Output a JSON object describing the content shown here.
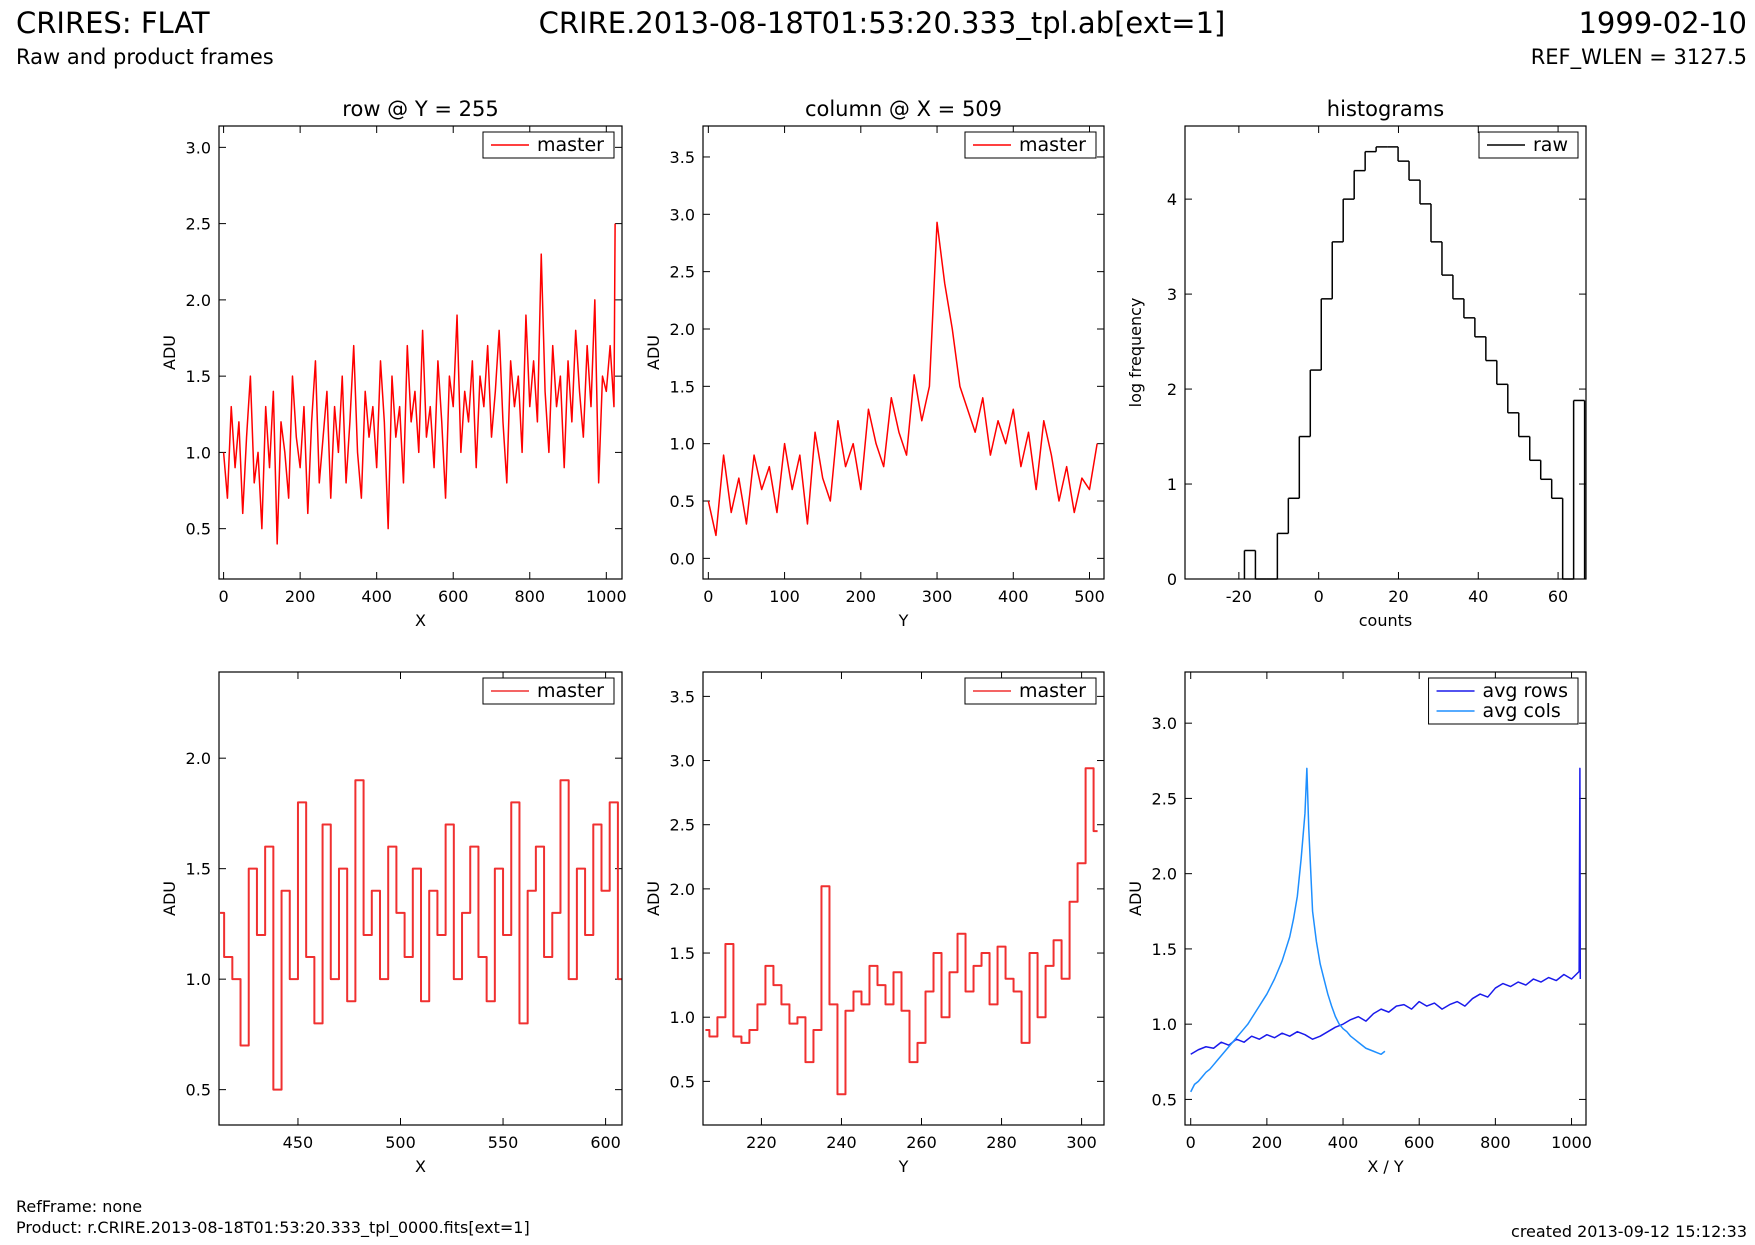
{
  "header": {
    "left_title": "CRIRES: FLAT",
    "left_subtitle": "Raw and product frames",
    "center_title": "CRIRE.2013-08-18T01:53:20.333_tpl.ab[ext=1]",
    "right_title": "1999-02-10",
    "right_subtitle": "REF_WLEN = 3127.5"
  },
  "footer": {
    "ref_frame": "RefFrame: none",
    "product": "Product: r.CRIRE.2013-08-18T01:53:20.333_tpl_0000.fits[ext=1]",
    "created": "created 2013-09-12 15:12:33"
  },
  "chart_data": [
    {
      "type": "line",
      "title": "row @ Y = 255",
      "x_label": "X",
      "y_label": "ADU",
      "legend": "upper right",
      "xlim": [
        -12,
        1041
      ],
      "xticks": [
        0,
        200,
        400,
        600,
        800,
        1000
      ],
      "ylim": [
        0.17,
        3.14
      ],
      "yticks": [
        0.5,
        {
          "value": 1,
          "label": "1.0"
        },
        1.5,
        {
          "value": 2,
          "label": "2.0"
        },
        2.5,
        {
          "value": 3,
          "label": "3.0"
        }
      ],
      "series": [
        {
          "name": "master",
          "color": "#ff0000",
          "x": [
            0,
            10,
            20,
            30,
            40,
            50,
            60,
            70,
            80,
            90,
            100,
            110,
            120,
            130,
            140,
            150,
            160,
            170,
            180,
            190,
            200,
            210,
            220,
            230,
            240,
            250,
            260,
            270,
            280,
            290,
            300,
            310,
            320,
            330,
            340,
            350,
            360,
            370,
            380,
            390,
            400,
            410,
            420,
            430,
            440,
            450,
            460,
            470,
            480,
            490,
            500,
            510,
            520,
            530,
            540,
            550,
            560,
            570,
            580,
            590,
            600,
            610,
            620,
            630,
            640,
            650,
            660,
            670,
            680,
            690,
            700,
            710,
            720,
            730,
            740,
            750,
            760,
            770,
            780,
            790,
            800,
            810,
            820,
            830,
            840,
            850,
            860,
            870,
            880,
            890,
            900,
            910,
            920,
            930,
            940,
            950,
            960,
            970,
            980,
            990,
            1000,
            1010,
            1020,
            1023
          ],
          "values": [
            1.0,
            0.7,
            1.3,
            0.9,
            1.2,
            0.6,
            1.1,
            1.5,
            0.8,
            1.0,
            0.5,
            1.3,
            0.9,
            1.4,
            0.4,
            1.2,
            1.0,
            0.7,
            1.5,
            1.1,
            0.9,
            1.3,
            0.6,
            1.2,
            1.6,
            0.8,
            1.1,
            1.4,
            0.7,
            1.3,
            1.0,
            1.5,
            0.8,
            1.2,
            1.7,
            1.0,
            0.7,
            1.4,
            1.1,
            1.3,
            0.9,
            1.6,
            1.2,
            0.5,
            1.5,
            1.1,
            1.3,
            0.8,
            1.7,
            1.2,
            1.4,
            1.0,
            1.8,
            1.1,
            1.3,
            0.9,
            1.6,
            1.2,
            0.7,
            1.5,
            1.3,
            1.9,
            1.0,
            1.4,
            1.2,
            1.6,
            0.9,
            1.5,
            1.3,
            1.7,
            1.1,
            1.4,
            1.8,
            1.2,
            0.8,
            1.6,
            1.3,
            1.5,
            1.0,
            1.9,
            1.3,
            1.6,
            1.2,
            2.3,
            1.4,
            1.0,
            1.7,
            1.3,
            1.5,
            0.9,
            1.6,
            1.2,
            1.8,
            1.4,
            1.1,
            1.7,
            1.3,
            2.0,
            0.8,
            1.5,
            1.4,
            1.7,
            1.3,
            2.5
          ]
        }
      ]
    },
    {
      "type": "line",
      "title": "column @ X = 509",
      "x_label": "Y",
      "y_label": "ADU",
      "legend": "upper right",
      "xlim": [
        -7,
        519
      ],
      "xticks": [
        0,
        100,
        200,
        300,
        400,
        500
      ],
      "ylim": [
        -0.18,
        3.77
      ],
      "yticks": [
        {
          "value": 0,
          "label": "0.0"
        },
        0.5,
        {
          "value": 1,
          "label": "1.0"
        },
        1.5,
        {
          "value": 2,
          "label": "2.0"
        },
        2.5,
        {
          "value": 3,
          "label": "3.0"
        },
        3.5
      ],
      "series": [
        {
          "name": "master",
          "color": "#ff0000",
          "x": [
            0,
            10,
            20,
            30,
            40,
            50,
            60,
            70,
            80,
            90,
            100,
            110,
            120,
            130,
            140,
            150,
            160,
            170,
            180,
            190,
            200,
            210,
            220,
            230,
            240,
            250,
            260,
            270,
            280,
            290,
            300,
            310,
            320,
            330,
            340,
            350,
            360,
            370,
            380,
            390,
            400,
            410,
            420,
            430,
            440,
            450,
            460,
            470,
            480,
            490,
            500,
            510
          ],
          "values": [
            0.5,
            0.2,
            0.9,
            0.4,
            0.7,
            0.3,
            0.9,
            0.6,
            0.8,
            0.4,
            1.0,
            0.6,
            0.9,
            0.3,
            1.1,
            0.7,
            0.5,
            1.2,
            0.8,
            1.0,
            0.6,
            1.3,
            1.0,
            0.8,
            1.4,
            1.1,
            0.9,
            1.6,
            1.2,
            1.5,
            2.93,
            2.4,
            2.0,
            1.5,
            1.3,
            1.1,
            1.4,
            0.9,
            1.2,
            1.0,
            1.3,
            0.8,
            1.1,
            0.6,
            1.2,
            0.9,
            0.5,
            0.8,
            0.4,
            0.7,
            0.6,
            1.0
          ]
        }
      ]
    },
    {
      "type": "histogram",
      "title": "histograms",
      "x_label": "counts",
      "y_label": "log frequency",
      "legend": "upper right",
      "xlim": [
        -33.5,
        67
      ],
      "xticks": [
        -20,
        0,
        20,
        40,
        60
      ],
      "ylim": [
        0,
        4.77
      ],
      "yticks": [
        0,
        1,
        2,
        3,
        4
      ],
      "bins": [
        -18.6,
        -15.85,
        -13.1,
        -10.35,
        -7.6,
        -4.85,
        -2.1,
        0.65,
        3.4,
        6.15,
        8.9,
        11.65,
        14.4,
        17.15,
        19.9,
        22.65,
        25.4,
        28.15,
        30.9,
        33.65,
        36.4,
        39.15,
        41.9,
        44.65,
        47.4,
        50.15,
        52.9,
        55.65,
        58.4,
        61.15,
        63.9,
        66.65
      ],
      "series": [
        {
          "name": "raw",
          "color": "#000000",
          "values": [
            0.3,
            0,
            0,
            0.48,
            0.85,
            1.5,
            2.2,
            2.95,
            3.55,
            4.0,
            4.3,
            4.5,
            4.55,
            4.55,
            4.4,
            4.2,
            3.95,
            3.55,
            3.2,
            2.95,
            2.75,
            2.55,
            2.3,
            2.05,
            1.75,
            1.5,
            1.25,
            1.05,
            0.85,
            0,
            1.88
          ]
        }
      ]
    },
    {
      "type": "step",
      "x_label": "X",
      "y_label": "ADU",
      "legend": "upper right",
      "xlim": [
        411.5,
        608
      ],
      "xticks": [
        450,
        500,
        550,
        600
      ],
      "ylim": [
        0.34,
        2.39
      ],
      "yticks": [
        0.5,
        {
          "value": 1,
          "label": "1.0"
        },
        1.5,
        {
          "value": 2,
          "label": "2.0"
        }
      ],
      "series": [
        {
          "name": "master",
          "color": "#f03030",
          "x": [
            412,
            416,
            420,
            424,
            428,
            432,
            436,
            440,
            444,
            448,
            452,
            456,
            460,
            464,
            468,
            472,
            476,
            480,
            484,
            488,
            492,
            496,
            500,
            504,
            508,
            512,
            516,
            520,
            524,
            528,
            532,
            536,
            540,
            544,
            548,
            552,
            556,
            560,
            564,
            568,
            572,
            576,
            580,
            584,
            588,
            592,
            596,
            600,
            604,
            608
          ],
          "values": [
            1.3,
            1.1,
            1.0,
            0.7,
            1.5,
            1.2,
            1.6,
            0.5,
            1.4,
            1.0,
            1.8,
            1.1,
            0.8,
            1.7,
            1.0,
            1.5,
            0.9,
            1.9,
            1.2,
            1.4,
            1.0,
            1.6,
            1.3,
            1.1,
            1.5,
            0.9,
            1.4,
            1.2,
            1.7,
            1.0,
            1.3,
            1.6,
            1.1,
            0.9,
            1.5,
            1.2,
            1.8,
            0.8,
            1.4,
            1.6,
            1.1,
            1.3,
            1.9,
            1.0,
            1.5,
            1.2,
            1.7,
            1.4,
            1.8,
            1.0
          ]
        }
      ]
    },
    {
      "type": "step",
      "x_label": "Y",
      "y_label": "ADU",
      "legend": "upper right",
      "xlim": [
        205.4,
        305.6
      ],
      "xticks": [
        220,
        240,
        260,
        280,
        300
      ],
      "ylim": [
        0.16,
        3.69
      ],
      "yticks": [
        0.5,
        {
          "value": 1,
          "label": "1.0"
        },
        1.5,
        {
          "value": 2,
          "label": "2.0"
        },
        2.5,
        {
          "value": 3,
          "label": "3.0"
        },
        3.5
      ],
      "series": [
        {
          "name": "master",
          "color": "#f03030",
          "x": [
            206,
            208,
            210,
            212,
            214,
            216,
            218,
            220,
            222,
            224,
            226,
            228,
            230,
            232,
            234,
            236,
            238,
            240,
            242,
            244,
            246,
            248,
            250,
            252,
            254,
            256,
            258,
            260,
            262,
            264,
            266,
            268,
            270,
            272,
            274,
            276,
            278,
            280,
            282,
            284,
            286,
            288,
            290,
            292,
            294,
            296,
            298,
            300,
            302,
            304
          ],
          "values": [
            0.9,
            0.85,
            1.0,
            1.57,
            0.85,
            0.8,
            0.9,
            1.1,
            1.4,
            1.25,
            1.1,
            0.95,
            1.0,
            0.65,
            0.9,
            2.02,
            1.1,
            0.4,
            1.05,
            1.2,
            1.1,
            1.4,
            1.25,
            1.1,
            1.35,
            1.05,
            0.65,
            0.8,
            1.2,
            1.5,
            1.0,
            1.35,
            1.65,
            1.2,
            1.4,
            1.5,
            1.1,
            1.55,
            1.3,
            1.2,
            0.8,
            1.5,
            1.0,
            1.4,
            1.6,
            1.3,
            1.9,
            2.2,
            2.94,
            2.45
          ]
        }
      ]
    },
    {
      "type": "line",
      "x_label": "X / Y",
      "y_label": "ADU",
      "legend": "upper right",
      "xlim": [
        -15,
        1038
      ],
      "xticks": [
        0,
        200,
        400,
        600,
        800,
        1000
      ],
      "ylim": [
        0.33,
        3.34
      ],
      "yticks": [
        0.5,
        {
          "value": 1,
          "label": "1.0"
        },
        1.5,
        {
          "value": 2,
          "label": "2.0"
        },
        2.5,
        {
          "value": 3,
          "label": "3.0"
        }
      ],
      "series": [
        {
          "name": "avg rows",
          "color": "#1a1aeb",
          "x": [
            0,
            20,
            40,
            60,
            80,
            100,
            120,
            140,
            160,
            180,
            200,
            220,
            240,
            260,
            280,
            300,
            320,
            340,
            360,
            380,
            400,
            420,
            440,
            460,
            480,
            500,
            520,
            540,
            560,
            580,
            600,
            620,
            640,
            660,
            680,
            700,
            720,
            740,
            760,
            780,
            800,
            820,
            840,
            860,
            880,
            900,
            920,
            940,
            960,
            980,
            1000,
            1020,
            1022,
            1023
          ],
          "values": [
            0.8,
            0.83,
            0.85,
            0.84,
            0.88,
            0.86,
            0.9,
            0.88,
            0.92,
            0.9,
            0.93,
            0.91,
            0.94,
            0.92,
            0.95,
            0.93,
            0.9,
            0.92,
            0.95,
            0.98,
            1.0,
            1.03,
            1.05,
            1.02,
            1.07,
            1.1,
            1.08,
            1.12,
            1.13,
            1.1,
            1.15,
            1.12,
            1.14,
            1.1,
            1.13,
            1.15,
            1.12,
            1.17,
            1.2,
            1.18,
            1.24,
            1.27,
            1.25,
            1.28,
            1.26,
            1.3,
            1.28,
            1.31,
            1.29,
            1.33,
            1.3,
            1.35,
            2.7,
            1.3
          ]
        },
        {
          "name": "avg cols",
          "color": "#1e8fff",
          "x": [
            0,
            10,
            20,
            30,
            40,
            50,
            60,
            70,
            80,
            90,
            100,
            110,
            120,
            130,
            140,
            150,
            160,
            170,
            180,
            190,
            200,
            210,
            220,
            230,
            240,
            250,
            260,
            270,
            280,
            290,
            300,
            305,
            310,
            320,
            330,
            340,
            350,
            360,
            370,
            380,
            390,
            400,
            410,
            420,
            430,
            440,
            450,
            460,
            470,
            480,
            490,
            500,
            510
          ],
          "values": [
            0.55,
            0.6,
            0.62,
            0.65,
            0.68,
            0.7,
            0.73,
            0.76,
            0.79,
            0.82,
            0.85,
            0.88,
            0.91,
            0.94,
            0.97,
            1.0,
            1.04,
            1.08,
            1.12,
            1.16,
            1.2,
            1.25,
            1.3,
            1.36,
            1.42,
            1.5,
            1.58,
            1.7,
            1.85,
            2.1,
            2.4,
            2.7,
            2.3,
            1.75,
            1.55,
            1.4,
            1.3,
            1.2,
            1.12,
            1.05,
            1.0,
            0.97,
            0.95,
            0.92,
            0.9,
            0.88,
            0.86,
            0.84,
            0.83,
            0.82,
            0.81,
            0.8,
            0.82
          ]
        }
      ]
    }
  ]
}
